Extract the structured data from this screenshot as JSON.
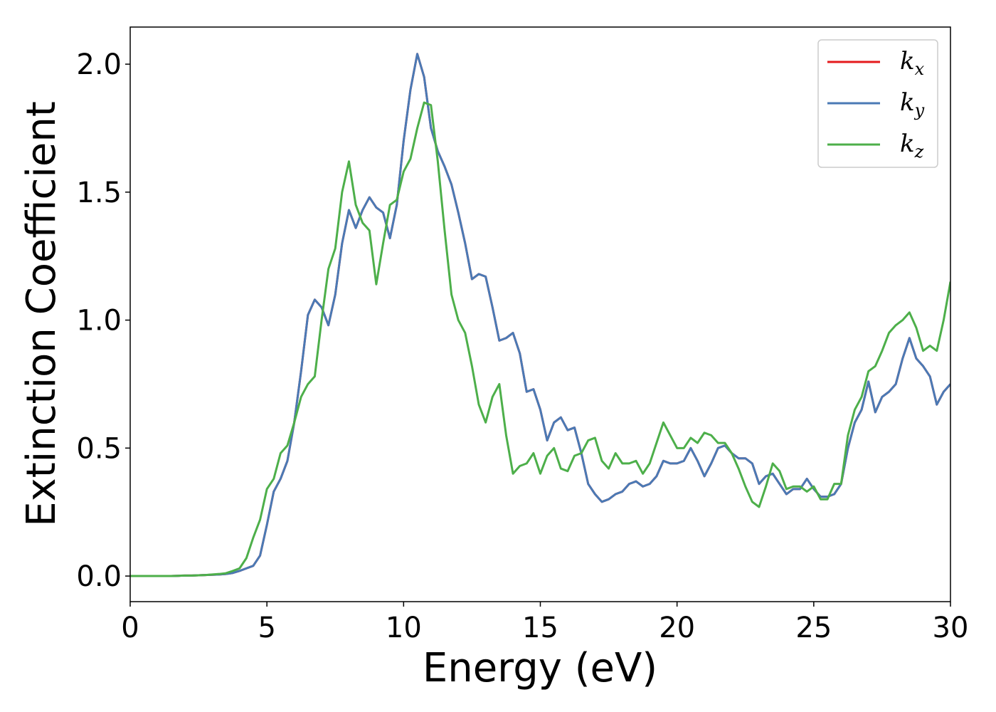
{
  "chart_data": {
    "type": "line",
    "xlabel": "Energy (eV)",
    "ylabel": "Extinction Coefficient",
    "x": [
      0,
      0.25,
      0.5,
      0.75,
      1,
      1.25,
      1.5,
      1.75,
      2,
      2.25,
      2.5,
      2.75,
      3,
      3.25,
      3.5,
      3.75,
      4,
      4.25,
      4.5,
      4.75,
      5,
      5.25,
      5.5,
      5.75,
      6,
      6.25,
      6.5,
      6.75,
      7,
      7.25,
      7.5,
      7.75,
      8,
      8.25,
      8.5,
      8.75,
      9,
      9.25,
      9.5,
      9.75,
      10,
      10.25,
      10.5,
      10.75,
      11,
      11.25,
      11.5,
      11.75,
      12,
      12.25,
      12.5,
      12.75,
      13,
      13.25,
      13.5,
      13.75,
      14,
      14.25,
      14.5,
      14.75,
      15,
      15.25,
      15.5,
      15.75,
      16,
      16.25,
      16.5,
      16.75,
      17,
      17.25,
      17.5,
      17.75,
      18,
      18.25,
      18.5,
      18.75,
      19,
      19.25,
      19.5,
      19.75,
      20,
      20.25,
      20.5,
      20.75,
      21,
      21.25,
      21.5,
      21.75,
      22,
      22.25,
      22.5,
      22.75,
      23,
      23.25,
      23.5,
      23.75,
      24,
      24.25,
      24.5,
      24.75,
      25,
      25.25,
      25.5,
      25.75,
      26,
      26.25,
      26.5,
      26.75,
      27,
      27.25,
      27.5,
      27.75,
      28,
      28.25,
      28.5,
      28.75,
      29,
      29.25,
      29.5,
      29.75,
      30
    ],
    "series": [
      {
        "name": "k_x",
        "color": "#e41a1c",
        "values": [
          0,
          0,
          0,
          0,
          0,
          0,
          0,
          0.001,
          0.002,
          0.002,
          0.003,
          0.004,
          0.005,
          0.006,
          0.008,
          0.012,
          0.02,
          0.03,
          0.04,
          0.08,
          0.2,
          0.33,
          0.38,
          0.45,
          0.6,
          0.8,
          1.02,
          1.08,
          1.05,
          0.98,
          1.1,
          1.3,
          1.43,
          1.36,
          1.43,
          1.48,
          1.44,
          1.42,
          1.32,
          1.45,
          1.7,
          1.9,
          2.04,
          1.95,
          1.75,
          1.66,
          1.6,
          1.53,
          1.42,
          1.3,
          1.16,
          1.18,
          1.17,
          1.05,
          0.92,
          0.93,
          0.95,
          0.87,
          0.72,
          0.73,
          0.65,
          0.53,
          0.6,
          0.62,
          0.57,
          0.58,
          0.48,
          0.36,
          0.32,
          0.29,
          0.3,
          0.32,
          0.33,
          0.36,
          0.37,
          0.35,
          0.36,
          0.39,
          0.45,
          0.44,
          0.44,
          0.45,
          0.5,
          0.45,
          0.39,
          0.44,
          0.5,
          0.51,
          0.48,
          0.46,
          0.46,
          0.44,
          0.36,
          0.39,
          0.4,
          0.36,
          0.32,
          0.34,
          0.34,
          0.38,
          0.34,
          0.31,
          0.31,
          0.32,
          0.36,
          0.5,
          0.6,
          0.65,
          0.76,
          0.64,
          0.7,
          0.72,
          0.75,
          0.85,
          0.93,
          0.85,
          0.82,
          0.78,
          0.67,
          0.72,
          0.75
        ]
      },
      {
        "name": "k_y",
        "color": "#4a7ab5",
        "values": [
          0,
          0,
          0,
          0,
          0,
          0,
          0,
          0.001,
          0.002,
          0.002,
          0.003,
          0.004,
          0.005,
          0.006,
          0.008,
          0.012,
          0.02,
          0.03,
          0.04,
          0.08,
          0.2,
          0.33,
          0.38,
          0.45,
          0.6,
          0.8,
          1.02,
          1.08,
          1.05,
          0.98,
          1.1,
          1.3,
          1.43,
          1.36,
          1.43,
          1.48,
          1.44,
          1.42,
          1.32,
          1.45,
          1.7,
          1.9,
          2.04,
          1.95,
          1.75,
          1.66,
          1.6,
          1.53,
          1.42,
          1.3,
          1.16,
          1.18,
          1.17,
          1.05,
          0.92,
          0.93,
          0.95,
          0.87,
          0.72,
          0.73,
          0.65,
          0.53,
          0.6,
          0.62,
          0.57,
          0.58,
          0.48,
          0.36,
          0.32,
          0.29,
          0.3,
          0.32,
          0.33,
          0.36,
          0.37,
          0.35,
          0.36,
          0.39,
          0.45,
          0.44,
          0.44,
          0.45,
          0.5,
          0.45,
          0.39,
          0.44,
          0.5,
          0.51,
          0.48,
          0.46,
          0.46,
          0.44,
          0.36,
          0.39,
          0.4,
          0.36,
          0.32,
          0.34,
          0.34,
          0.38,
          0.34,
          0.31,
          0.31,
          0.32,
          0.36,
          0.5,
          0.6,
          0.65,
          0.76,
          0.64,
          0.7,
          0.72,
          0.75,
          0.85,
          0.93,
          0.85,
          0.82,
          0.78,
          0.67,
          0.72,
          0.75
        ]
      },
      {
        "name": "k_z",
        "color": "#4daf4a",
        "values": [
          0,
          0,
          0,
          0,
          0,
          0,
          0,
          0.001,
          0.002,
          0.002,
          0.003,
          0.004,
          0.006,
          0.008,
          0.011,
          0.02,
          0.03,
          0.07,
          0.15,
          0.22,
          0.34,
          0.38,
          0.48,
          0.51,
          0.6,
          0.7,
          0.75,
          0.78,
          1.0,
          1.2,
          1.28,
          1.5,
          1.62,
          1.45,
          1.38,
          1.35,
          1.14,
          1.3,
          1.45,
          1.47,
          1.58,
          1.63,
          1.75,
          1.85,
          1.84,
          1.62,
          1.35,
          1.1,
          1.0,
          0.95,
          0.82,
          0.67,
          0.6,
          0.7,
          0.75,
          0.55,
          0.4,
          0.43,
          0.44,
          0.48,
          0.4,
          0.47,
          0.5,
          0.42,
          0.41,
          0.47,
          0.48,
          0.53,
          0.54,
          0.45,
          0.42,
          0.48,
          0.44,
          0.44,
          0.45,
          0.4,
          0.44,
          0.52,
          0.6,
          0.55,
          0.5,
          0.5,
          0.54,
          0.52,
          0.56,
          0.55,
          0.52,
          0.52,
          0.48,
          0.42,
          0.35,
          0.29,
          0.27,
          0.35,
          0.44,
          0.41,
          0.34,
          0.35,
          0.35,
          0.33,
          0.35,
          0.3,
          0.3,
          0.36,
          0.36,
          0.55,
          0.65,
          0.7,
          0.8,
          0.82,
          0.88,
          0.95,
          0.98,
          1.0,
          1.03,
          0.97,
          0.88,
          0.9,
          0.88,
          1.0,
          1.15
        ]
      }
    ],
    "xlim": [
      0,
      30
    ],
    "xticks": [
      0,
      5,
      10,
      15,
      20,
      25,
      30
    ],
    "ylim": [
      -0.1,
      2.145
    ],
    "yticks": [
      {
        "value": 0,
        "label": "0.0"
      },
      0.5,
      {
        "value": 1,
        "label": "1.0"
      },
      1.5,
      {
        "value": 2,
        "label": "2.0"
      }
    ],
    "legend": "upper right",
    "grid": false
  }
}
